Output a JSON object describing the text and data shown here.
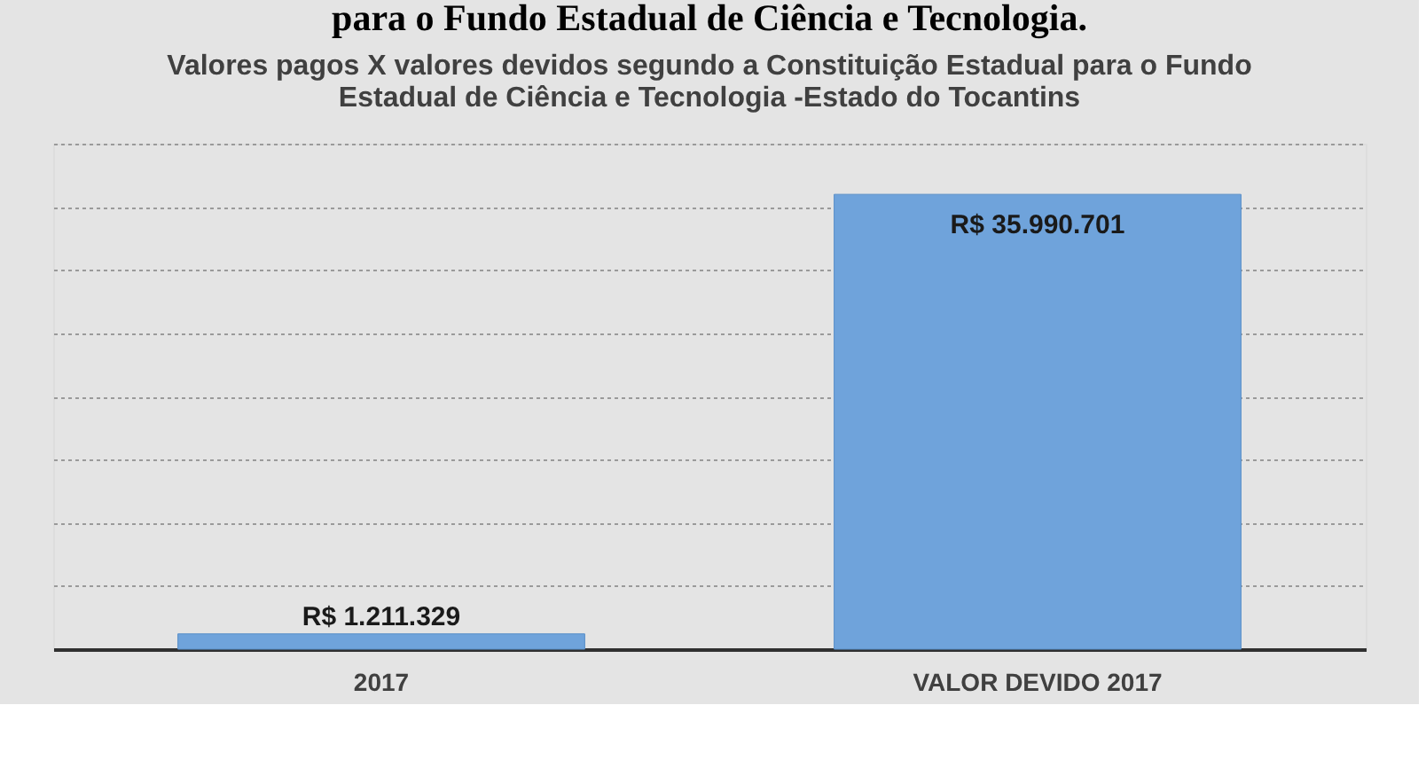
{
  "chart_data": {
    "type": "bar",
    "title": "Valores pagos X valores devidos segundo a Constituição Estadual para o Fundo Estadual de Ciência e Tecnologia -Estado do Tocantins",
    "annotations": [
      "para o Fundo Estadual de Ciência e Tecnologia."
    ],
    "categories": [
      "2017",
      "VALOR DEVIDO 2017"
    ],
    "values": [
      1211329,
      35990701
    ],
    "value_labels": [
      "R$ 1.211.329",
      "R$ 35.990.701"
    ],
    "color": "#6fa3db",
    "ylim": [
      0,
      40000000
    ],
    "yticks": [
      {
        "value": 0,
        "label": null
      },
      {
        "value": 5000000,
        "label": null
      },
      {
        "value": 10000000,
        "label": null
      },
      {
        "value": 15000000,
        "label": null
      },
      {
        "value": 20000000,
        "label": null
      },
      {
        "value": 25000000,
        "label": null
      },
      {
        "value": 30000000,
        "label": null
      },
      {
        "value": 35000000,
        "label": null
      },
      {
        "value": 40000000,
        "label": null
      }
    ],
    "grid": "y",
    "tick_labels": "x"
  }
}
